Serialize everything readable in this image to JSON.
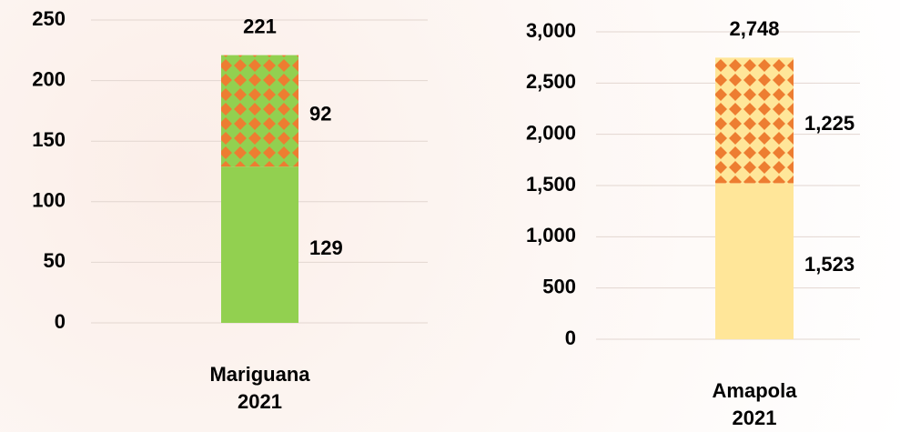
{
  "chart_data": [
    {
      "type": "stacked_bar",
      "categories": [
        "Mariguana 2021"
      ],
      "series": [
        {
          "color": "#92d050",
          "values": [
            129
          ]
        },
        {
          "color": "#ed7d31",
          "pattern": "diamond",
          "values": [
            92
          ]
        }
      ],
      "totals": [
        221
      ],
      "ylim": [
        0,
        250
      ],
      "yticks": [
        0,
        50,
        100,
        150,
        200,
        250
      ],
      "grid": true
    },
    {
      "type": "stacked_bar",
      "categories": [
        "Amapola 2021"
      ],
      "series": [
        {
          "color": "#ffe699",
          "values": [
            1523
          ],
          "value_labels": [
            "1,523"
          ]
        },
        {
          "color": "#ed7d31",
          "pattern": "diamond",
          "values": [
            1225
          ],
          "value_labels": [
            "1,225"
          ]
        }
      ],
      "totals": [
        2748
      ],
      "total_labels": [
        "2,748"
      ],
      "ylim": [
        0,
        3000
      ],
      "yticks": [
        0,
        500,
        {
          "value": 1000,
          "label": "1,000"
        },
        {
          "value": 1500,
          "label": "1,500"
        },
        {
          "value": 2000,
          "label": "2,000"
        },
        {
          "value": 2500,
          "label": "2,500"
        },
        {
          "value": 3000,
          "label": "3,000"
        }
      ],
      "grid": true
    }
  ]
}
